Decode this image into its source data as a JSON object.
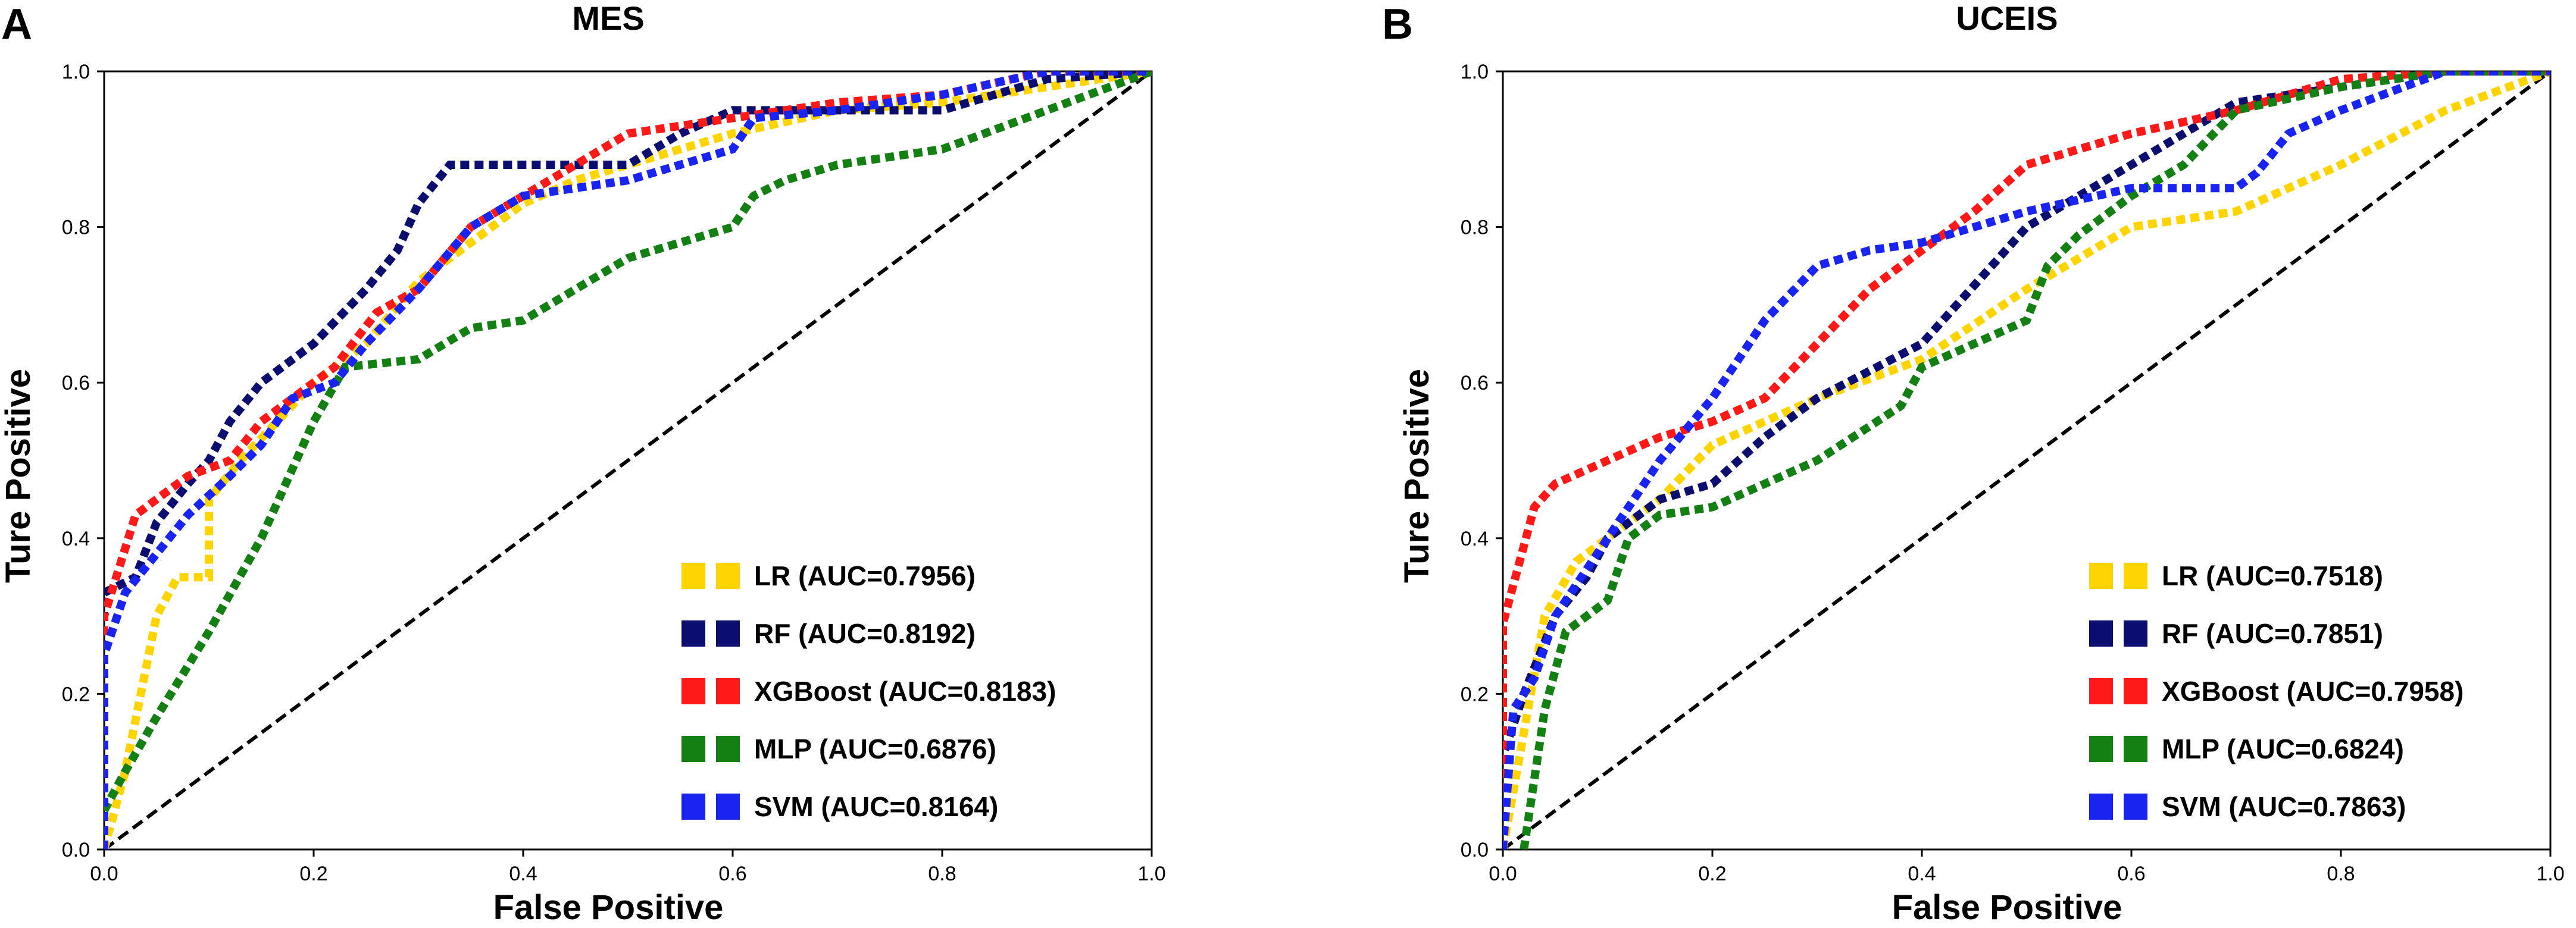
{
  "figure": {
    "background": "#ffffff",
    "series_colors": {
      "LR": "#FFD400",
      "RF": "#0B0E6E",
      "XGBoost": "#FF1A1A",
      "MLP": "#148014",
      "SVM": "#1A24F0"
    },
    "diagonal_color": "#000000"
  },
  "chart_data": [
    {
      "type": "line",
      "panel_label": "A",
      "title": "MES",
      "xlabel": "False Positive",
      "ylabel": "Ture Positive",
      "xlim": [
        0,
        1
      ],
      "ylim": [
        0,
        1
      ],
      "xticks": [
        "0.0",
        "0.2",
        "0.4",
        "0.6",
        "0.8",
        "1.0"
      ],
      "yticks": [
        "0.0",
        "0.2",
        "0.4",
        "0.6",
        "0.8",
        "1.0"
      ],
      "grid": false,
      "legend_position": "bottom-right",
      "diagonal": true,
      "series": [
        {
          "key": "LR",
          "name": "LR (AUC=0.7956)",
          "x": [
            0,
            0.02,
            0.05,
            0.07,
            0.1,
            0.1,
            0.13,
            0.2,
            0.25,
            0.3,
            0.35,
            0.4,
            0.45,
            0.5,
            0.6,
            0.7,
            0.8,
            0.9,
            1.0
          ],
          "y": [
            0,
            0.1,
            0.3,
            0.35,
            0.35,
            0.45,
            0.5,
            0.6,
            0.65,
            0.73,
            0.78,
            0.83,
            0.86,
            0.88,
            0.92,
            0.95,
            0.96,
            0.98,
            1.0
          ]
        },
        {
          "key": "RF",
          "name": "RF (AUC=0.8192)",
          "x": [
            0,
            0,
            0.03,
            0.05,
            0.08,
            0.1,
            0.12,
            0.15,
            0.2,
            0.25,
            0.28,
            0.3,
            0.33,
            0.4,
            0.5,
            0.55,
            0.6,
            0.7,
            0.8,
            0.9,
            1.0
          ],
          "y": [
            0,
            0.33,
            0.35,
            0.42,
            0.47,
            0.5,
            0.55,
            0.6,
            0.65,
            0.72,
            0.77,
            0.83,
            0.88,
            0.88,
            0.88,
            0.92,
            0.95,
            0.95,
            0.95,
            0.99,
            1.0
          ]
        },
        {
          "key": "XGBoost",
          "name": "XGBoost (AUC=0.8183)",
          "x": [
            0,
            0,
            0.03,
            0.05,
            0.08,
            0.12,
            0.15,
            0.18,
            0.22,
            0.26,
            0.3,
            0.35,
            0.4,
            0.45,
            0.5,
            0.6,
            0.7,
            0.8,
            0.9,
            1.0
          ],
          "y": [
            0,
            0.3,
            0.43,
            0.45,
            0.48,
            0.5,
            0.55,
            0.58,
            0.62,
            0.69,
            0.72,
            0.8,
            0.84,
            0.88,
            0.92,
            0.94,
            0.96,
            0.97,
            1.0,
            1.0
          ]
        },
        {
          "key": "MLP",
          "name": "MLP (AUC=0.6876)",
          "x": [
            0,
            0.02,
            0.05,
            0.1,
            0.15,
            0.2,
            0.23,
            0.3,
            0.35,
            0.4,
            0.45,
            0.5,
            0.6,
            0.62,
            0.65,
            0.7,
            0.8,
            0.9,
            1.0
          ],
          "y": [
            0.05,
            0.1,
            0.17,
            0.28,
            0.4,
            0.55,
            0.62,
            0.63,
            0.67,
            0.68,
            0.72,
            0.76,
            0.8,
            0.84,
            0.86,
            0.88,
            0.9,
            0.95,
            1.0
          ]
        },
        {
          "key": "SVM",
          "name": "SVM (AUC=0.8164)",
          "x": [
            0,
            0,
            0.02,
            0.05,
            0.08,
            0.12,
            0.15,
            0.18,
            0.22,
            0.25,
            0.3,
            0.35,
            0.4,
            0.5,
            0.6,
            0.62,
            0.7,
            0.8,
            0.9,
            1.0
          ],
          "y": [
            0,
            0.25,
            0.33,
            0.38,
            0.43,
            0.48,
            0.52,
            0.58,
            0.6,
            0.65,
            0.72,
            0.8,
            0.84,
            0.86,
            0.9,
            0.94,
            0.95,
            0.97,
            1.0,
            1.0
          ]
        }
      ]
    },
    {
      "type": "line",
      "panel_label": "B",
      "title": "UCEIS",
      "xlabel": "False Positive",
      "ylabel": "Ture Positive",
      "xlim": [
        0,
        1
      ],
      "ylim": [
        0,
        1
      ],
      "xticks": [
        "0.0",
        "0.2",
        "0.4",
        "0.6",
        "0.8",
        "1.0"
      ],
      "yticks": [
        "0.0",
        "0.2",
        "0.4",
        "0.6",
        "0.8",
        "1.0"
      ],
      "grid": false,
      "legend_position": "bottom-right",
      "diagonal": true,
      "series": [
        {
          "key": "LR",
          "name": "LR (AUC=0.7518)",
          "x": [
            0,
            0.02,
            0.04,
            0.07,
            0.1,
            0.15,
            0.2,
            0.3,
            0.4,
            0.5,
            0.55,
            0.6,
            0.7,
            0.75,
            0.8,
            0.9,
            1.0
          ],
          "y": [
            0,
            0.15,
            0.3,
            0.37,
            0.4,
            0.45,
            0.52,
            0.58,
            0.63,
            0.72,
            0.76,
            0.8,
            0.82,
            0.85,
            0.88,
            0.95,
            1.0
          ]
        },
        {
          "key": "RF",
          "name": "RF (AUC=0.7851)",
          "x": [
            0,
            0,
            0.02,
            0.05,
            0.08,
            0.1,
            0.15,
            0.2,
            0.25,
            0.3,
            0.4,
            0.5,
            0.6,
            0.65,
            0.7,
            0.8,
            0.9,
            1.0
          ],
          "y": [
            0,
            0.12,
            0.2,
            0.3,
            0.35,
            0.4,
            0.45,
            0.47,
            0.53,
            0.58,
            0.65,
            0.8,
            0.88,
            0.92,
            0.96,
            0.98,
            1.0,
            1.0
          ]
        },
        {
          "key": "XGBoost",
          "name": "XGBoost (AUC=0.7958)",
          "x": [
            0,
            0,
            0.03,
            0.05,
            0.1,
            0.15,
            0.2,
            0.25,
            0.3,
            0.35,
            0.4,
            0.45,
            0.5,
            0.55,
            0.6,
            0.7,
            0.8,
            0.9,
            1.0
          ],
          "y": [
            0,
            0.29,
            0.44,
            0.47,
            0.5,
            0.53,
            0.55,
            0.58,
            0.65,
            0.72,
            0.77,
            0.82,
            0.88,
            0.9,
            0.92,
            0.95,
            0.99,
            1.0,
            1.0
          ]
        },
        {
          "key": "MLP",
          "name": "MLP (AUC=0.6824)",
          "x": [
            0.02,
            0.04,
            0.06,
            0.1,
            0.12,
            0.15,
            0.2,
            0.3,
            0.38,
            0.4,
            0.5,
            0.52,
            0.55,
            0.6,
            0.65,
            0.7,
            0.8,
            0.9,
            1.0
          ],
          "y": [
            0,
            0.18,
            0.28,
            0.32,
            0.4,
            0.43,
            0.44,
            0.5,
            0.57,
            0.62,
            0.68,
            0.75,
            0.79,
            0.84,
            0.88,
            0.95,
            0.98,
            1.0,
            1.0
          ]
        },
        {
          "key": "SVM",
          "name": "SVM (AUC=0.7863)",
          "x": [
            0,
            0.01,
            0.03,
            0.05,
            0.1,
            0.15,
            0.2,
            0.25,
            0.3,
            0.35,
            0.4,
            0.5,
            0.6,
            0.7,
            0.72,
            0.75,
            0.8,
            0.9,
            1.0
          ],
          "y": [
            0,
            0.18,
            0.22,
            0.3,
            0.4,
            0.5,
            0.58,
            0.68,
            0.75,
            0.77,
            0.78,
            0.82,
            0.85,
            0.85,
            0.87,
            0.92,
            0.95,
            1.0,
            1.0
          ]
        }
      ]
    }
  ]
}
